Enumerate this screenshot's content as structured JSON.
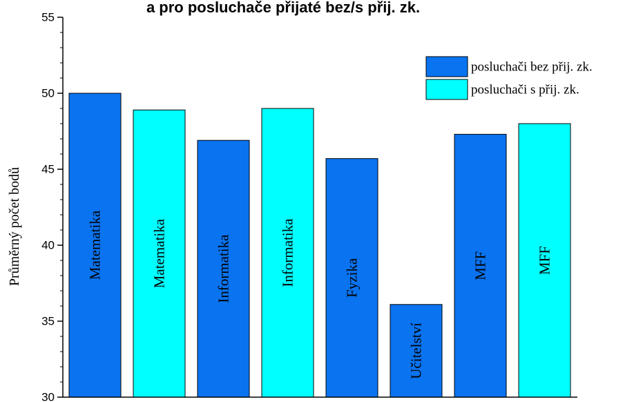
{
  "colors": {
    "bez": "#0a73f0",
    "s": "#00ffff"
  },
  "chart_data": {
    "type": "bar",
    "title": "a pro posluchače přijaté bez/s přij. zk.",
    "ylabel": "Průměrný počet bodů",
    "xlabel": "",
    "ylim": [
      30,
      55
    ],
    "yticks": [
      30,
      35,
      40,
      45,
      50,
      55
    ],
    "y_minor_step": 1,
    "grid": false,
    "legend_position": "top-right",
    "legend": [
      {
        "label": "posluchači bez přij. zk.",
        "group": "bez"
      },
      {
        "label": "posluchači s přij. zk.",
        "group": "s"
      }
    ],
    "bars": [
      {
        "label": "Matematika",
        "value": 50.0,
        "group": "bez"
      },
      {
        "label": "Matematika",
        "value": 48.9,
        "group": "s"
      },
      {
        "label": "Informatika",
        "value": 46.9,
        "group": "bez"
      },
      {
        "label": "Informatika",
        "value": 49.0,
        "group": "s"
      },
      {
        "label": "Fyzika",
        "value": 45.7,
        "group": "bez"
      },
      {
        "label": "Učitelství",
        "value": 36.1,
        "group": "bez"
      },
      {
        "label": "MFF",
        "value": 47.3,
        "group": "bez"
      },
      {
        "label": "MFF",
        "value": 48.0,
        "group": "s"
      }
    ]
  }
}
